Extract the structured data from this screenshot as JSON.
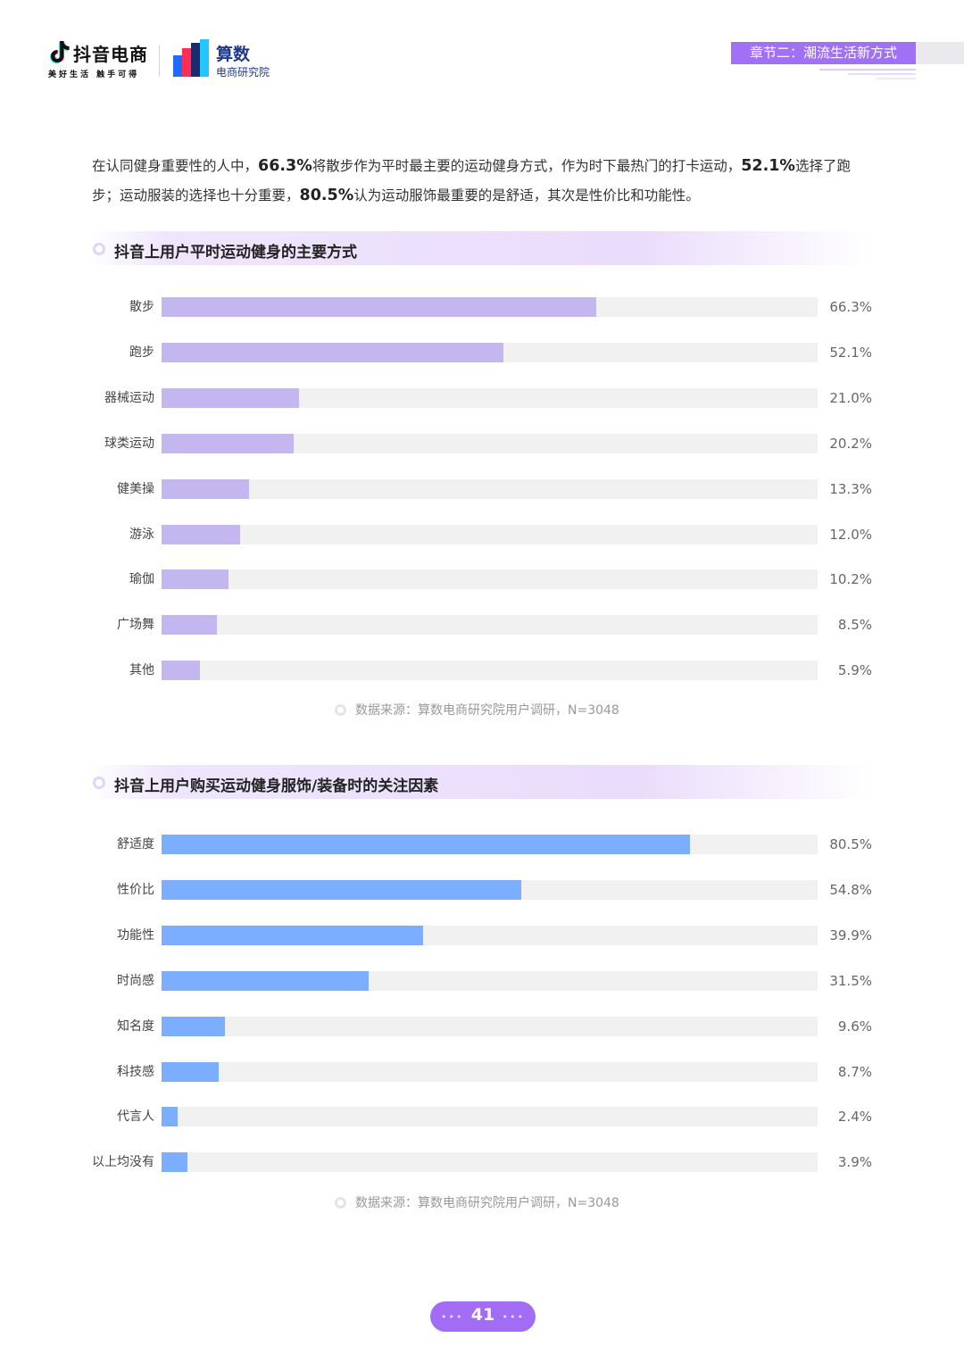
{
  "header": {
    "douyin_logo": {
      "name": "抖音电商",
      "slogan": "美好生活 触手可得"
    },
    "suanshu_logo": {
      "title": "算数",
      "subtitle": "电商研究院"
    },
    "chapter_tag": "章节二：潮流生活新方式",
    "colors": {
      "accent": "#a171f5"
    }
  },
  "intro": {
    "t1": "在认同健身重要性的人中，",
    "h1": "66.3%",
    "t2": "将散步作为平时最主要的运动健身方式，作为时下最热门的打卡运动，",
    "h2": "52.1%",
    "t3": "选择了跑步；运动服装的选择也十分重要，",
    "h3": "80.5%",
    "t4": "认为运动服饰最重要的是舒适，其次是性价比和功能性。"
  },
  "sections": [
    {
      "title": "抖音上用户平时运动健身的主要方式",
      "source": "数据来源：算数电商研究院用户调研，N=3048"
    },
    {
      "title": "抖音上用户购买运动健身服饰/装备时的关注因素",
      "source": "数据来源：算数电商研究院用户调研，N=3048"
    }
  ],
  "chart_data": [
    {
      "type": "bar",
      "orientation": "horizontal",
      "title": "抖音上用户平时运动健身的主要方式",
      "categories": [
        "散步",
        "跑步",
        "器械运动",
        "球类运动",
        "健美操",
        "游泳",
        "瑜伽",
        "广场舞",
        "其他"
      ],
      "values": [
        66.3,
        52.1,
        21.0,
        20.2,
        13.3,
        12.0,
        10.2,
        8.5,
        5.9
      ],
      "value_labels": [
        "66.3%",
        "52.1%",
        "21.0%",
        "20.2%",
        "13.3%",
        "12.0%",
        "10.2%",
        "8.5%",
        "5.9%"
      ],
      "xlim": [
        0,
        100
      ],
      "unit": "%",
      "color": "#c4b7f0",
      "track_color": "#f1f1f1"
    },
    {
      "type": "bar",
      "orientation": "horizontal",
      "title": "抖音上用户购买运动健身服饰/装备时的关注因素",
      "categories": [
        "舒适度",
        "性价比",
        "功能性",
        "时尚感",
        "知名度",
        "科技感",
        "代言人",
        "以上均没有"
      ],
      "values": [
        80.5,
        54.8,
        39.9,
        31.5,
        9.6,
        8.7,
        2.4,
        3.9
      ],
      "value_labels": [
        "80.5%",
        "54.8%",
        "39.9%",
        "31.5%",
        "9.6%",
        "8.7%",
        "2.4%",
        "3.9%"
      ],
      "xlim": [
        0,
        100
      ],
      "unit": "%",
      "color": "#7caeff",
      "track_color": "#f1f1f1"
    }
  ],
  "footer": {
    "page_number": "41"
  }
}
